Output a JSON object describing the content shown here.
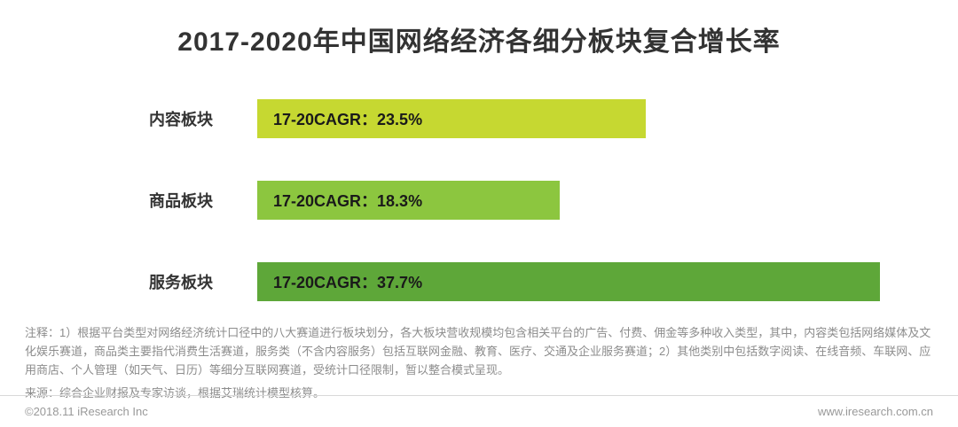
{
  "title": "2017-2020年中国网络经济各细分板块复合增长率",
  "chart_data": {
    "type": "bar",
    "orientation": "horizontal",
    "title": "2017-2020年中国网络经济各细分板块复合增长率",
    "categories": [
      "内容板块",
      "商品板块",
      "服务板块"
    ],
    "values": [
      23.5,
      18.3,
      37.7
    ],
    "unit": "%",
    "bar_labels": [
      "17-20CAGR：23.5%",
      "17-20CAGR：18.3%",
      "17-20CAGR：37.7%"
    ],
    "bar_colors": [
      "#c6d831",
      "#8cc63f",
      "#5ea739"
    ],
    "axis_max": 40,
    "grid": false,
    "legend": "none"
  },
  "notes": "注释：1）根据平台类型对网络经济统计口径中的八大赛道进行板块划分，各大板块营收规模均包含相关平台的广告、付费、佣金等多种收入类型，其中，内容类包括网络媒体及文化娱乐赛道，商品类主要指代消费生活赛道，服务类（不含内容服务）包括互联网金融、教育、医疗、交通及企业服务赛道；2）其他类别中包括数字阅读、在线音频、车联网、应用商店、个人管理（如天气、日历）等细分互联网赛道，受统计口径限制，暂以整合模式呈现。",
  "source": "来源：综合企业财报及专家访谈，根据艾瑞统计模型核算。",
  "footer": {
    "left": "©2018.11 iResearch Inc",
    "right": "www.iresearch.com.cn"
  }
}
